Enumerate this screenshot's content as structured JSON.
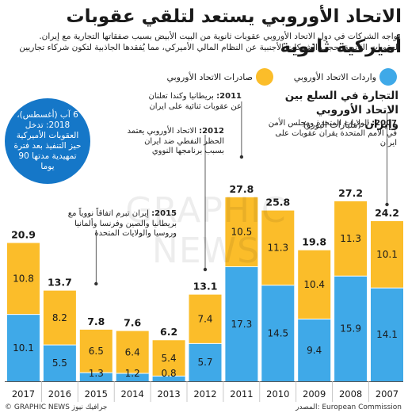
{
  "header": {
    "title": "الاتحاد الأوروبي يستعد لتلقي عقوبات أميركية ثانوية",
    "subtitle_line1": "تواجه الشركات في دول الاتحاد الأوروبي عقوبات ثانوية من البيت الأبيض بسبب صفقاتها التجارية مع إيران.",
    "subtitle_line2": "العقوبات الثانوية تحجب الشركات الأجنبية عن النظام المالي الأميركي، مما يُفقدها الجاذبية لتكون شركاء تجاريين"
  },
  "legend": {
    "imports_label": "واردات الاتحاد الأوروبي",
    "exports_label": "صادرات الاتحاد الأوروبي"
  },
  "colors": {
    "imports": "#3fa9e8",
    "exports": "#fbbd2a",
    "circle": "#1577c8"
  },
  "chart_heading": {
    "line1": "التجارة في السلع بين الاتحاد الأوروبي",
    "line2_bold": "وإيران",
    "unit": "(مليارات اليورو)"
  },
  "callout_circle": "6 آب (أغسطس)، 2018: تدخل العقوبات الأميركية حيز التنفيذ بعد فترة تمهيدية مدتها 90 يوما",
  "notes": {
    "n2007_year": "2007:",
    "n2007_text": "الولايات المتحدة ومجلس الأمن في الأمم المتحدة يقران عقوبات على ايران",
    "n2011_year": "2011:",
    "n2011_text": "بريطانيا وكندا تعلنان عن عقوبات ثنائية على ايران",
    "n2012_year": "2012:",
    "n2012_text": "الاتحاد الأوروبي يعتمد الحظر النفطي ضد ايران بسبب برنامجها النووي",
    "n2015_year": "2015:",
    "n2015_text": "إيران تبرم اتفاقاً نووياً مع بريطانيا والصين وفرنسا وألمانيا وروسيا والولايات المتحدة"
  },
  "footer": {
    "source": "المصدر: European Commission",
    "credit": "© GRAPHIC NEWS جرافيك نيوز"
  },
  "watermark": "GRAPHIC NEWS",
  "chart_data": {
    "type": "bar",
    "stacked": true,
    "categories": [
      "2017",
      "2016",
      "2015",
      "2014",
      "2013",
      "2012",
      "2011",
      "2010",
      "2009",
      "2008",
      "2007"
    ],
    "series": [
      {
        "name": "واردات الاتحاد الأوروبي",
        "values": [
          10.1,
          5.5,
          1.3,
          1.2,
          0.8,
          5.7,
          17.3,
          14.5,
          9.4,
          15.9,
          14.1
        ]
      },
      {
        "name": "صادرات الاتحاد الأوروبي",
        "values": [
          10.8,
          8.2,
          6.5,
          6.4,
          5.4,
          7.4,
          10.5,
          11.3,
          10.4,
          11.3,
          10.1
        ]
      }
    ],
    "totals": [
      "20.9",
      "13.7",
      "7.8",
      "7.6",
      "6.2",
      "13.1",
      "27.8",
      "25.8",
      "19.8",
      "27.2",
      "24.2"
    ],
    "ylim": [
      0,
      30
    ],
    "legend": "top"
  }
}
